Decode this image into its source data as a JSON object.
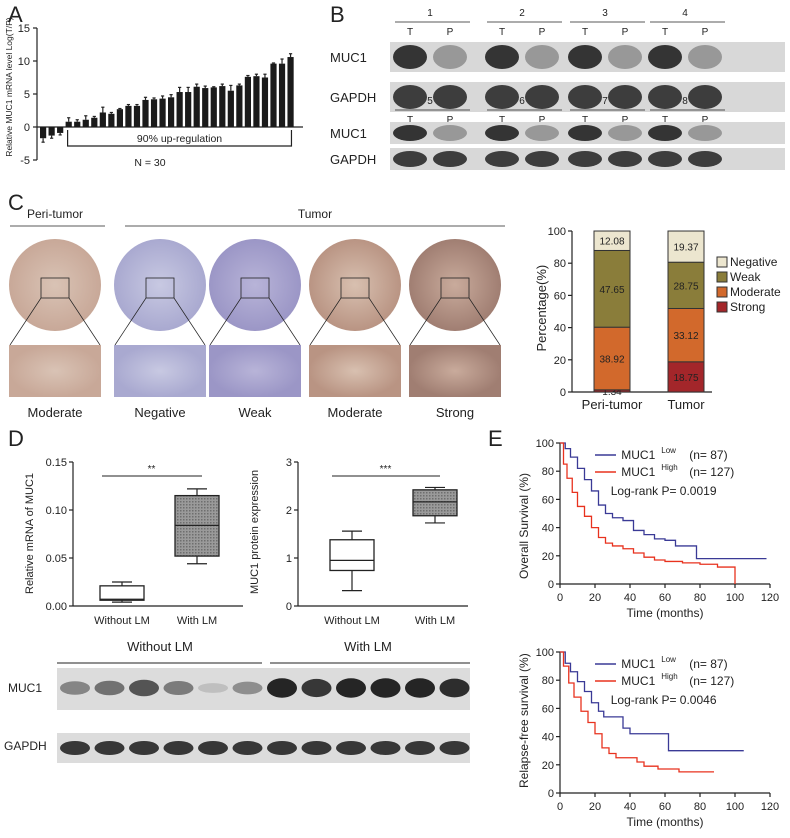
{
  "panel_letters": [
    "A",
    "B",
    "C",
    "D",
    "E"
  ],
  "colors": {
    "bar": "#1a1a1a",
    "negative": "#ece6cf",
    "weak": "#8a7d3a",
    "moderate": "#d2692c",
    "strong": "#a3262a",
    "low": "#3a3a96",
    "high": "#e8321e",
    "box_fill": "#8c8c8c"
  },
  "chart_data": [
    {
      "type": "bar",
      "panel": "A",
      "ylabel": "Relative MUC1 mRNA level Log(T/P)",
      "ylim": [
        -5,
        15
      ],
      "yticks": [
        -5,
        0,
        5,
        10,
        15
      ],
      "values": [
        -1.7,
        -1.3,
        -0.9,
        0.8,
        0.8,
        1.1,
        1.4,
        2.2,
        2.0,
        2.7,
        3.2,
        3.2,
        4.1,
        4.2,
        4.3,
        4.5,
        5.3,
        5.3,
        6.1,
        5.9,
        6.0,
        6.2,
        5.5,
        6.3,
        7.6,
        7.7,
        7.5,
        9.6,
        9.6,
        10.6
      ],
      "errors": [
        0.6,
        0.4,
        0.3,
        0.6,
        0.3,
        0.6,
        0.2,
        0.8,
        0.2,
        0.1,
        0.2,
        0.2,
        0.4,
        0.2,
        0.4,
        0.4,
        0.7,
        0.7,
        0.4,
        0.3,
        0.1,
        0.3,
        0.8,
        0.2,
        0.2,
        0.3,
        0.5,
        0.1,
        0.7,
        0.5
      ],
      "bracket_label": "90% up-regulation",
      "annotation": "N = 30"
    },
    {
      "type": "bar",
      "panel": "C",
      "stacked": true,
      "ylabel": "Percentage(%)",
      "ylim": [
        0,
        100
      ],
      "yticks": [
        0,
        20,
        40,
        60,
        80,
        100
      ],
      "categories": [
        "Peri-tumor",
        "Tumor"
      ],
      "legend": "right",
      "series": [
        {
          "name": "Strong",
          "values": [
            1.34,
            18.75
          ]
        },
        {
          "name": "Moderate",
          "values": [
            38.92,
            33.12
          ]
        },
        {
          "name": "Weak",
          "values": [
            47.65,
            28.75
          ]
        },
        {
          "name": "Negative",
          "values": [
            12.08,
            19.37
          ]
        }
      ],
      "labels": [
        [
          "1.34",
          "38.92",
          "47.65",
          "12.08"
        ],
        [
          "18.75",
          "33.12",
          "28.75",
          "19.37"
        ]
      ]
    },
    {
      "type": "box",
      "panel": "D",
      "ylabel": "Relative mRNA of MUC1",
      "ylim": [
        0,
        0.15
      ],
      "yticks": [
        "0.00",
        "0.05",
        "0.10",
        "0.15"
      ],
      "categories": [
        "Without LM",
        "With LM"
      ],
      "boxes": [
        {
          "min": 0.004,
          "q1": 0.006,
          "median": 0.007,
          "q3": 0.021,
          "max": 0.025
        },
        {
          "min": 0.044,
          "q1": 0.052,
          "median": 0.084,
          "q3": 0.115,
          "max": 0.122
        }
      ],
      "significance": "**"
    },
    {
      "type": "box",
      "panel": "D",
      "ylabel": "MUC1 protein expression",
      "ylim": [
        0,
        3
      ],
      "yticks": [
        "0",
        "1",
        "2",
        "3"
      ],
      "categories": [
        "Without LM",
        "With LM"
      ],
      "boxes": [
        {
          "min": 0.32,
          "q1": 0.74,
          "median": 0.95,
          "q3": 1.38,
          "max": 1.56
        },
        {
          "min": 1.73,
          "q1": 1.88,
          "median": 2.17,
          "q3": 2.42,
          "max": 2.47
        }
      ],
      "significance": "***"
    },
    {
      "type": "line",
      "panel": "E",
      "ylabel": "Overall Survival (%)",
      "xlabel": "Time (months)",
      "xlim": [
        0,
        120
      ],
      "ylim": [
        0,
        100
      ],
      "xticks": [
        0,
        20,
        40,
        60,
        80,
        100,
        120
      ],
      "yticks": [
        0,
        20,
        40,
        60,
        80,
        100
      ],
      "series": [
        {
          "name": "MUC1 Low",
          "sup": "Low",
          "n": "(n=  87)",
          "x": [
            0,
            3,
            6,
            10,
            14,
            18,
            22,
            26,
            30,
            36,
            42,
            48,
            54,
            60,
            66,
            72,
            78,
            78,
            118
          ],
          "y": [
            100,
            96,
            90,
            82,
            74,
            66,
            56,
            50,
            47,
            45,
            38,
            35,
            32,
            31,
            27,
            27,
            27,
            18,
            18
          ]
        },
        {
          "name": "MUC1 High",
          "sup": "High",
          "n": "(n= 127)",
          "x": [
            0,
            2,
            4,
            7,
            10,
            14,
            18,
            22,
            26,
            30,
            36,
            42,
            48,
            54,
            60,
            70,
            80,
            90,
            99,
            100
          ],
          "y": [
            100,
            85,
            75,
            65,
            55,
            48,
            40,
            33,
            29,
            27,
            25,
            22,
            19,
            17,
            16,
            15,
            14,
            12,
            12,
            0
          ]
        }
      ],
      "legend_prefix": "MUC1",
      "stat": "Log-rank  P= 0.0019"
    },
    {
      "type": "line",
      "panel": "E",
      "ylabel": "Relapse-free survival (%)",
      "xlabel": "Time (months)",
      "xlim": [
        0,
        120
      ],
      "ylim": [
        0,
        100
      ],
      "xticks": [
        0,
        20,
        40,
        60,
        80,
        100,
        120
      ],
      "yticks": [
        0,
        20,
        40,
        60,
        80,
        100
      ],
      "series": [
        {
          "name": "MUC1 Low",
          "sup": "Low",
          "n": "(n=  87)",
          "x": [
            0,
            3,
            6,
            10,
            14,
            18,
            22,
            25,
            32,
            36,
            40,
            50,
            61,
            62,
            105
          ],
          "y": [
            100,
            92,
            86,
            79,
            72,
            64,
            58,
            54,
            54,
            46,
            42,
            42,
            42,
            30,
            30
          ]
        },
        {
          "name": "MUC1 High",
          "sup": "High",
          "n": "(n= 127)",
          "x": [
            0,
            2,
            5,
            8,
            12,
            16,
            20,
            24,
            28,
            32,
            40,
            44,
            48,
            56,
            66,
            68,
            88
          ],
          "y": [
            100,
            90,
            78,
            68,
            58,
            50,
            42,
            32,
            28,
            25,
            25,
            22,
            19,
            17,
            17,
            15,
            15
          ]
        }
      ],
      "legend_prefix": "MUC1",
      "stat": "Log-rank  P= 0.0046"
    }
  ],
  "blot_B": {
    "top_lanes": [
      "1",
      "2",
      "3",
      "4"
    ],
    "bottom_lanes": [
      "5",
      "6",
      "7",
      "8"
    ],
    "tp": [
      "T",
      "P"
    ],
    "rows": [
      "MUC1",
      "GAPDH"
    ]
  },
  "ihc_C": {
    "group_peri": "Peri-tumor",
    "group_tumor": "Tumor",
    "cores": [
      "Moderate",
      "Negative",
      "Weak",
      "Moderate",
      "Strong"
    ]
  },
  "blot_D": {
    "groups": [
      "Without LM",
      "With LM"
    ],
    "rows": [
      "MUC1",
      "GAPDH"
    ],
    "muc1_intensity": [
      0.45,
      0.55,
      0.7,
      0.5,
      0.15,
      0.4,
      0.95,
      0.85,
      0.95,
      0.95,
      0.95,
      0.9
    ]
  }
}
